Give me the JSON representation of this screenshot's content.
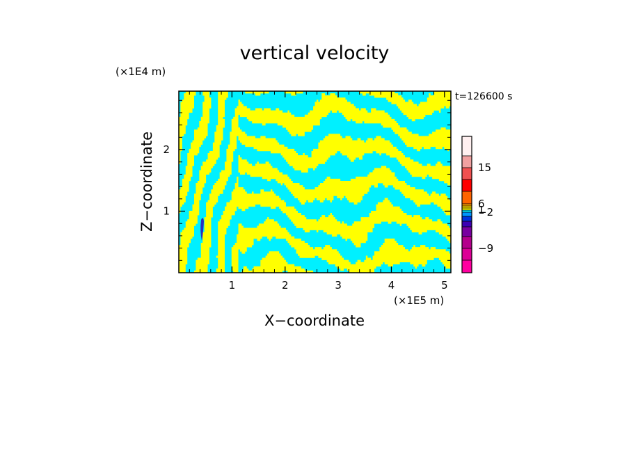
{
  "chart_data": {
    "type": "heatmap",
    "title": "vertical velocity",
    "xlabel": "X−coordinate",
    "ylabel": "Z−coordinate",
    "x_unit": "(×1E5 m)",
    "y_unit": "(×1E4 m)",
    "time_label": "t=126600 s",
    "xlim": [
      0,
      5.12
    ],
    "ylim": [
      0,
      2.95
    ],
    "x_ticks": [
      {
        "value": 1,
        "label": "1"
      },
      {
        "value": 2,
        "label": "2"
      },
      {
        "value": 3,
        "label": "3"
      },
      {
        "value": 4,
        "label": "4"
      },
      {
        "value": 5,
        "label": "5"
      }
    ],
    "y_ticks": [
      {
        "value": 1,
        "label": "1"
      },
      {
        "value": 2,
        "label": "2"
      }
    ],
    "field_colors": {
      "positive_weak": "#ffff00",
      "negative_weak": "#00f0ff",
      "negative_moderate": "#2d2dbe"
    },
    "colorbar": {
      "levels": [
        {
          "color": "#ff00a0"
        },
        {
          "color": "#dc0096"
        },
        {
          "color": "#b4008c"
        },
        {
          "color": "#7800a0"
        },
        {
          "color": "#3c00b4"
        },
        {
          "color": "#0032dc"
        },
        {
          "color": "#0096ff"
        },
        {
          "color": "#00f0ff"
        },
        {
          "color": "#ffff00"
        },
        {
          "color": "#ffdc00"
        },
        {
          "color": "#ffa000"
        },
        {
          "color": "#ff6400"
        },
        {
          "color": "#ff0000"
        },
        {
          "color": "#f05050"
        },
        {
          "color": "#f0a0a0"
        },
        {
          "color": "#fff0f0"
        }
      ],
      "labels": [
        {
          "text": "15",
          "at_boundary": 14
        },
        {
          "text": "6",
          "at_boundary": 11
        },
        {
          "text": "1",
          "at_boundary": 8
        },
        {
          "text": "−2",
          "at_boundary": 7
        },
        {
          "text": "−9",
          "at_boundary": 2
        }
      ]
    }
  }
}
